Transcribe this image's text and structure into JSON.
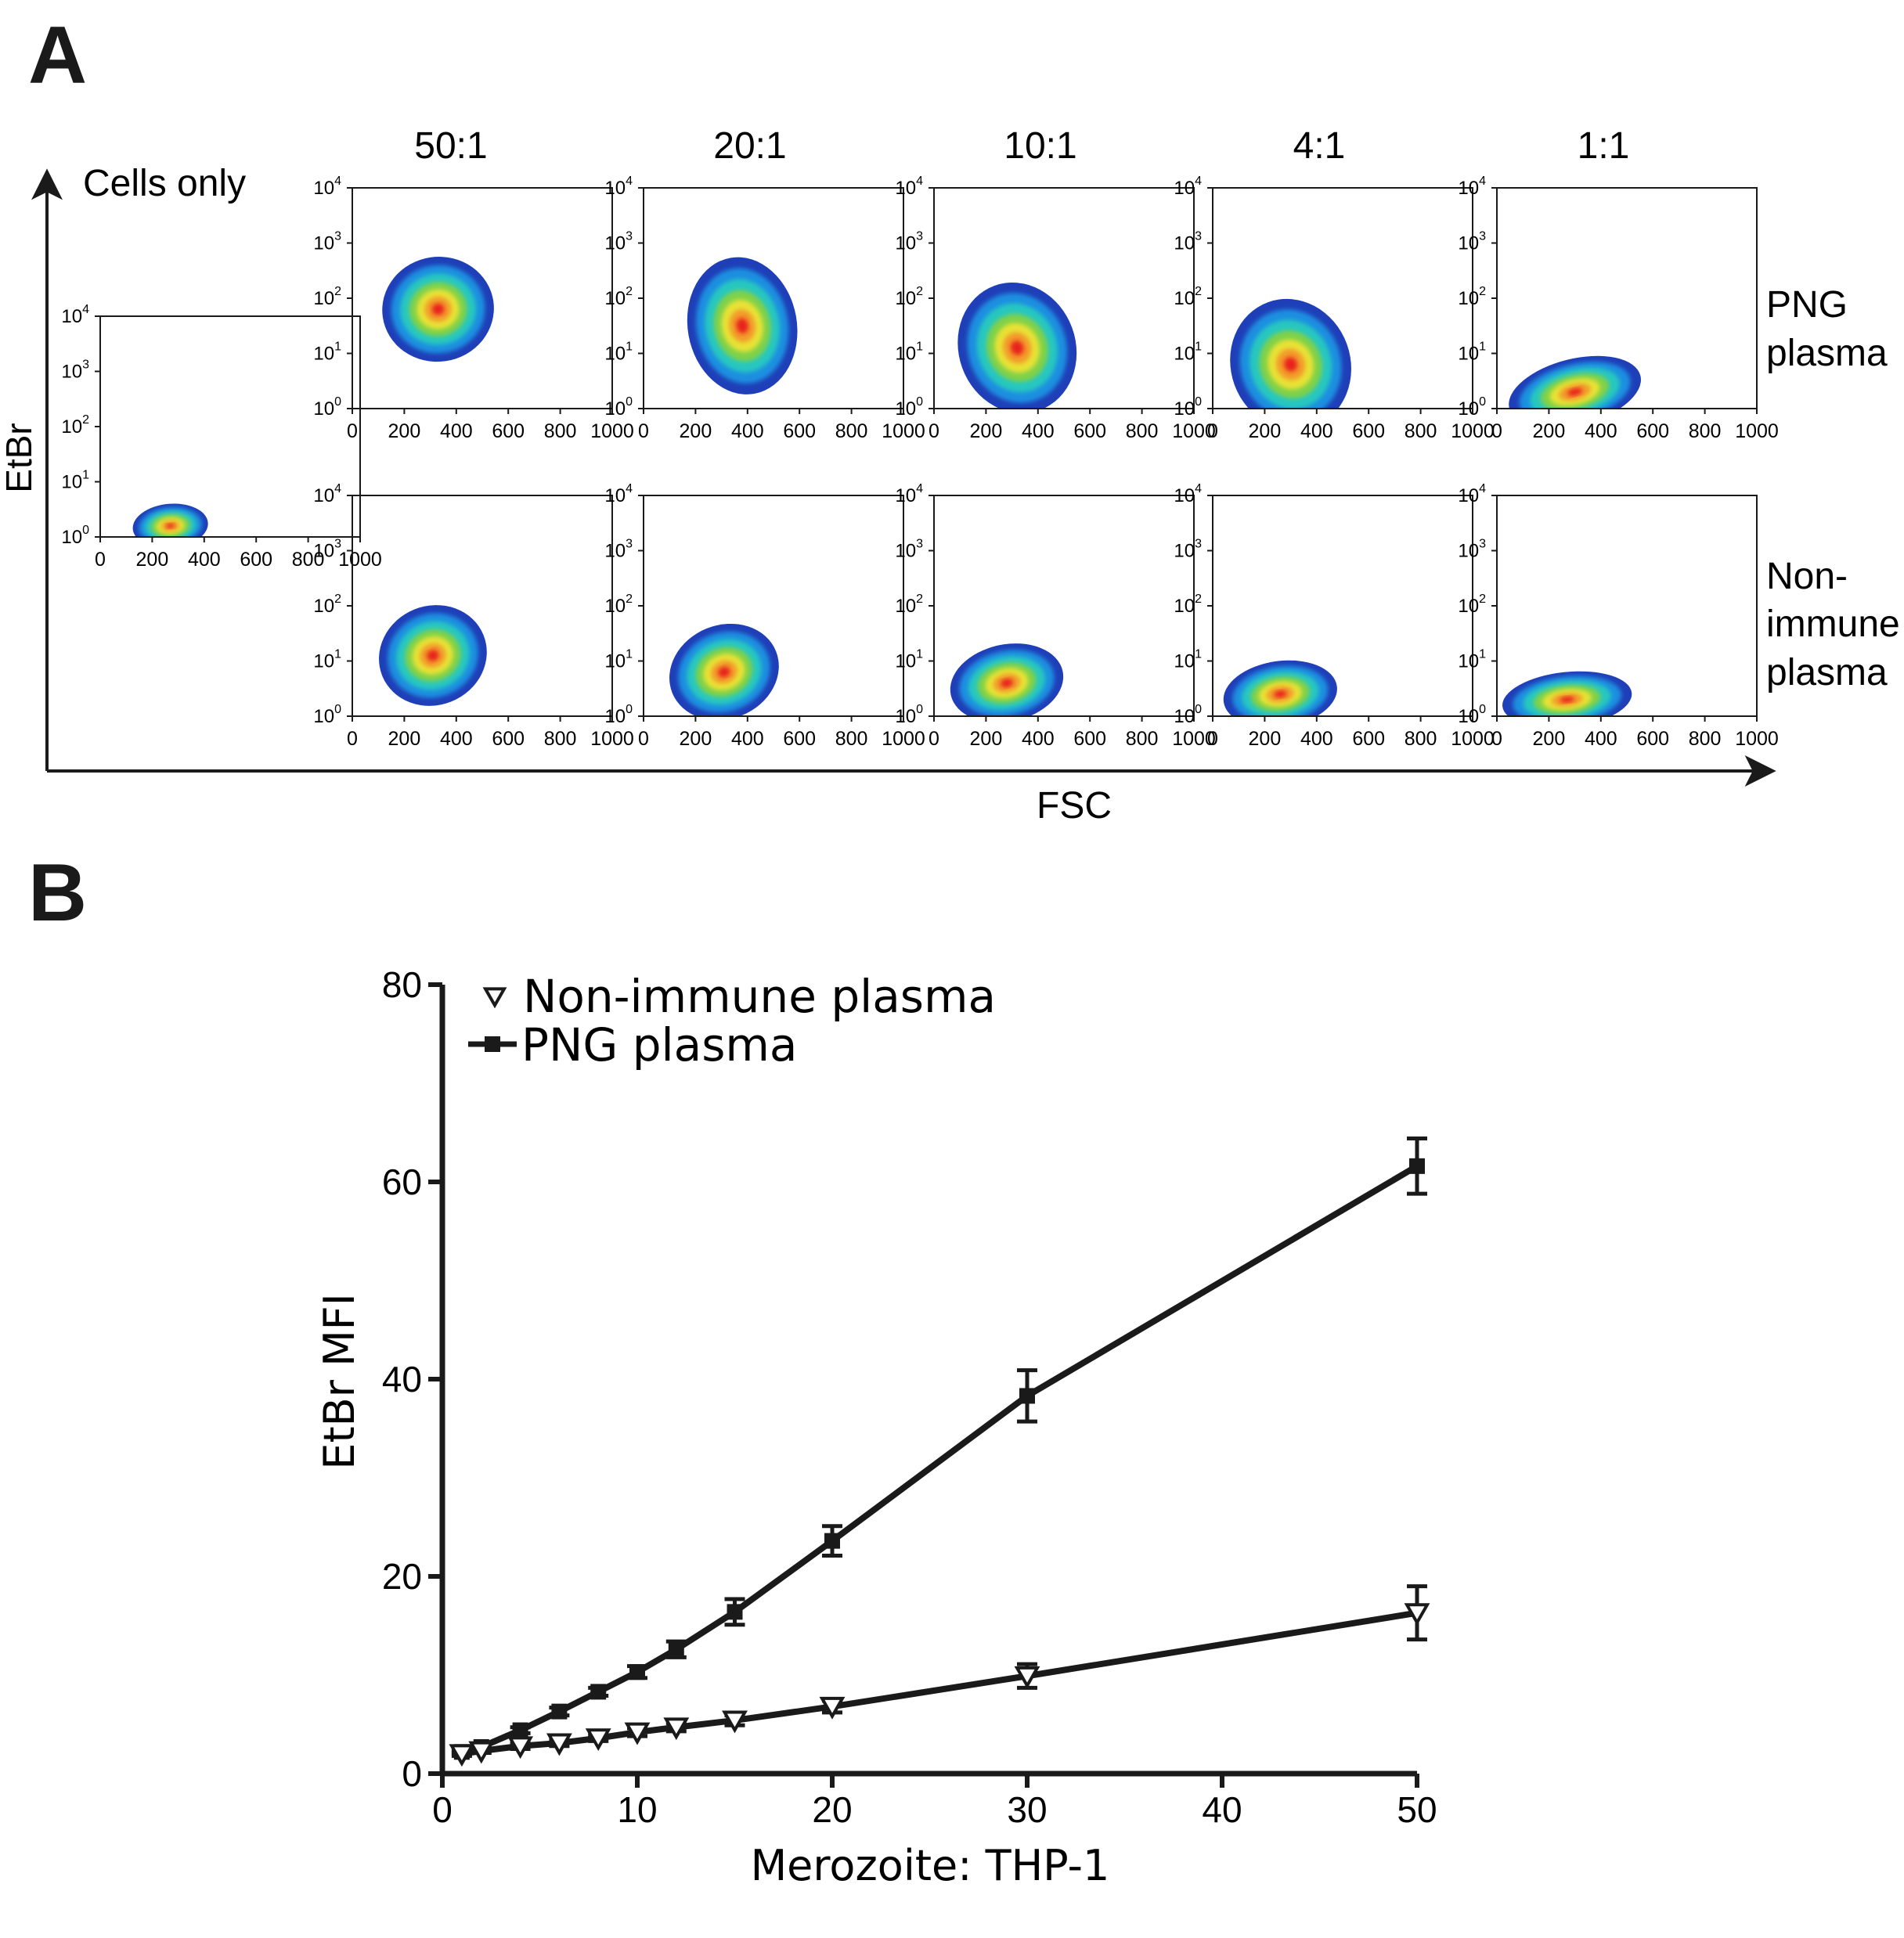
{
  "figure": {
    "panel_a_label": "A",
    "panel_b_label": "B"
  },
  "panel_a": {
    "y_axis_label": "EtBr",
    "x_axis_label": "FSC",
    "cells_only_label": "Cells only",
    "ratio_headers": [
      "50:1",
      "20:1",
      "10:1",
      "4:1",
      "1:1"
    ],
    "row_labels": [
      {
        "lines": [
          "PNG",
          "plasma"
        ]
      },
      {
        "lines": [
          "Non-",
          "immune",
          "plasma"
        ]
      }
    ],
    "density_colors": [
      "#1f3fb8",
      "#1a8fe0",
      "#27c7c0",
      "#7fd14a",
      "#e8e234",
      "#f39a2a",
      "#e8231d"
    ],
    "x_ticks": [
      "0",
      "200",
      "400",
      "600",
      "800",
      "1000"
    ],
    "x_tick_values": [
      0,
      200,
      400,
      600,
      800,
      1000
    ],
    "y_ticks": [
      {
        "base": "10",
        "exp": "0"
      },
      {
        "base": "10",
        "exp": "1"
      },
      {
        "base": "10",
        "exp": "2"
      },
      {
        "base": "10",
        "exp": "3"
      },
      {
        "base": "10",
        "exp": "4"
      }
    ],
    "y_tick_values_log10": [
      0,
      1,
      2,
      3,
      4
    ],
    "x_range": [
      0,
      1000
    ],
    "y_range_log10": [
      0,
      4
    ],
    "plots": [
      {
        "row": "control",
        "ratio": "Cells only",
        "populations": [
          {
            "cx": 270,
            "cy": 0.2,
            "rx": 290,
            "ry": 0.4,
            "rot": -5
          }
        ]
      },
      {
        "row": "PNG plasma",
        "ratio": "50:1",
        "populations": [
          {
            "cx": 330,
            "cy": 1.8,
            "rx": 430,
            "ry": 0.95,
            "rot": -8
          }
        ]
      },
      {
        "row": "PNG plasma",
        "ratio": "20:1",
        "populations": [
          {
            "cx": 380,
            "cy": 1.5,
            "rx": 420,
            "ry": 1.25,
            "rot": -10
          }
        ]
      },
      {
        "row": "PNG plasma",
        "ratio": "10:1",
        "populations": [
          {
            "cx": 320,
            "cy": 1.1,
            "rx": 450,
            "ry": 1.2,
            "rot": -20
          }
        ]
      },
      {
        "row": "PNG plasma",
        "ratio": "4:1",
        "populations": [
          {
            "cx": 300,
            "cy": 0.8,
            "rx": 460,
            "ry": 1.2,
            "rot": -20
          }
        ]
      },
      {
        "row": "PNG plasma",
        "ratio": "1:1",
        "populations": [
          {
            "cx": 300,
            "cy": 0.3,
            "rx": 520,
            "ry": 0.6,
            "rot": -14
          }
        ]
      },
      {
        "row": "Non-immune plasma",
        "ratio": "50:1",
        "populations": [
          {
            "cx": 310,
            "cy": 1.1,
            "rx": 420,
            "ry": 0.9,
            "rot": -22
          }
        ]
      },
      {
        "row": "Non-immune plasma",
        "ratio": "20:1",
        "populations": [
          {
            "cx": 310,
            "cy": 0.8,
            "rx": 430,
            "ry": 0.85,
            "rot": -22
          }
        ]
      },
      {
        "row": "Non-immune plasma",
        "ratio": "10:1",
        "populations": [
          {
            "cx": 280,
            "cy": 0.6,
            "rx": 440,
            "ry": 0.7,
            "rot": -12
          }
        ]
      },
      {
        "row": "Non-immune plasma",
        "ratio": "4:1",
        "populations": [
          {
            "cx": 260,
            "cy": 0.4,
            "rx": 440,
            "ry": 0.6,
            "rot": -8
          }
        ]
      },
      {
        "row": "Non-immune plasma",
        "ratio": "1:1",
        "populations": [
          {
            "cx": 270,
            "cy": 0.3,
            "rx": 500,
            "ry": 0.5,
            "rot": -6
          }
        ]
      }
    ]
  },
  "chart_data": {
    "type": "line",
    "title": "",
    "xlabel": "Merozoite: THP-1",
    "ylabel": "EtBr MFI",
    "xlim": [
      0,
      50
    ],
    "ylim": [
      0,
      80
    ],
    "x_ticks": [
      0,
      10,
      20,
      30,
      40,
      50
    ],
    "y_ticks": [
      0,
      20,
      40,
      60,
      80
    ],
    "legend_position": "top-left",
    "grid": false,
    "series": [
      {
        "name": "Non-immune plasma",
        "marker": "open-triangle-down",
        "x": [
          1,
          2,
          4,
          6,
          8,
          10,
          12,
          15,
          20,
          30,
          50
        ],
        "y": [
          2.0,
          2.3,
          2.8,
          3.1,
          3.6,
          4.2,
          4.7,
          5.4,
          6.8,
          9.9,
          16.3
        ],
        "error": [
          0.2,
          0.2,
          0.3,
          0.3,
          0.3,
          0.4,
          0.4,
          0.5,
          0.6,
          1.2,
          2.7
        ]
      },
      {
        "name": "PNG plasma",
        "marker": "filled-square",
        "x": [
          1,
          2,
          4,
          6,
          8,
          10,
          12,
          15,
          20,
          30,
          50
        ],
        "y": [
          2.2,
          2.7,
          4.4,
          6.3,
          8.3,
          10.3,
          12.6,
          16.4,
          23.6,
          38.3,
          61.6
        ],
        "error": [
          0.2,
          0.2,
          0.3,
          0.4,
          0.4,
          0.6,
          0.8,
          1.3,
          1.5,
          2.6,
          2.8
        ]
      }
    ]
  }
}
